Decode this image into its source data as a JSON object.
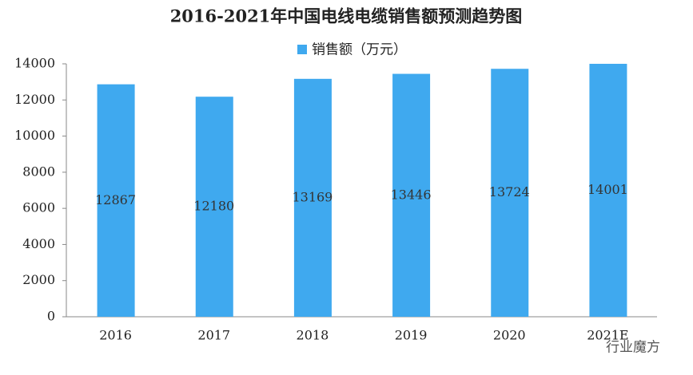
{
  "chart_data": {
    "type": "bar",
    "title": "2016-2021年中国电线电缆销售额预测趋势图",
    "categories": [
      "2016",
      "2017",
      "2018",
      "2019",
      "2020",
      "2021E"
    ],
    "series": [
      {
        "name": "销售额（万元）",
        "color": "#3fa9ef",
        "values": [
          12867,
          12180,
          13169,
          13446,
          13724,
          14001
        ]
      }
    ],
    "ylim": [
      0,
      14000
    ],
    "yticks": [
      0,
      2000,
      4000,
      6000,
      8000,
      10000,
      12000,
      14000
    ],
    "grid": false
  },
  "watermark": "行业魔方"
}
